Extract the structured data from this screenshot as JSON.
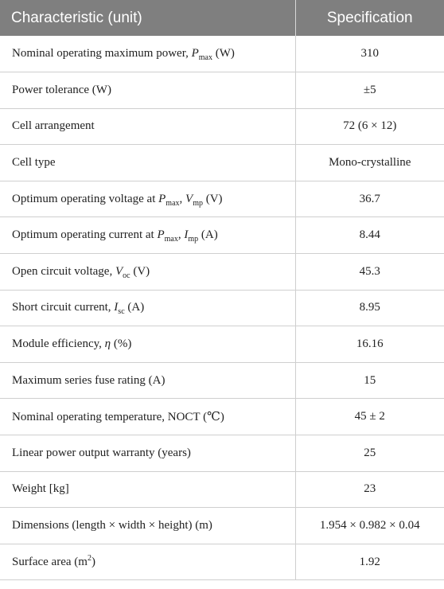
{
  "header": {
    "characteristic": "Characteristic (unit)",
    "specification": "Specification"
  },
  "rows": [
    {
      "a": "Nominal operating maximum power, ",
      "sym1": "P",
      "sub1": "max",
      "b": " (W)",
      "value": "310"
    },
    {
      "a": "Power tolerance (W)",
      "value": "±5"
    },
    {
      "a": "Cell arrangement",
      "value": "72 (6 × 12)"
    },
    {
      "a": "Cell type",
      "value": "Mono-crystalline"
    },
    {
      "a": "Optimum operating voltage at ",
      "sym1": "P",
      "sub1": "max",
      "mid": ", ",
      "sym2": "V",
      "sub2": "mp",
      "b": " (V)",
      "value": "36.7"
    },
    {
      "a": "Optimum operating current at ",
      "sym1": "P",
      "sub1": "max",
      "mid": ", ",
      "sym2": "I",
      "sub2": "mp",
      "b": " (A)",
      "value": "8.44"
    },
    {
      "a": "Open circuit voltage, ",
      "sym1": "V",
      "sub1": "oc",
      "b": " (V)",
      "value": "45.3"
    },
    {
      "a": "Short circuit current, ",
      "sym1": "I",
      "sub1": "sc",
      "b": " (A)",
      "value": "8.95"
    },
    {
      "a": "Module efficiency, ",
      "sym1": "η",
      "b": " (%)",
      "value": "16.16"
    },
    {
      "a": "Maximum series fuse rating (A)",
      "value": "15"
    },
    {
      "a": "Nominal operating temperature, NOCT (℃)",
      "value": "45 ± 2"
    },
    {
      "a": "Linear power output warranty (years)",
      "value": "25"
    },
    {
      "a": "Weight [kg]",
      "value": "23"
    },
    {
      "a": "Dimensions (length × width × height) (m)",
      "value": "1.954 × 0.982 × 0.04"
    },
    {
      "a": "Surface area (m",
      "sup": "2",
      "b": ")",
      "value": "1.92"
    }
  ],
  "colors": {
    "header_bg": "#7f7f7f",
    "header_text": "#ffffff",
    "grid": "#cfcfcf"
  }
}
